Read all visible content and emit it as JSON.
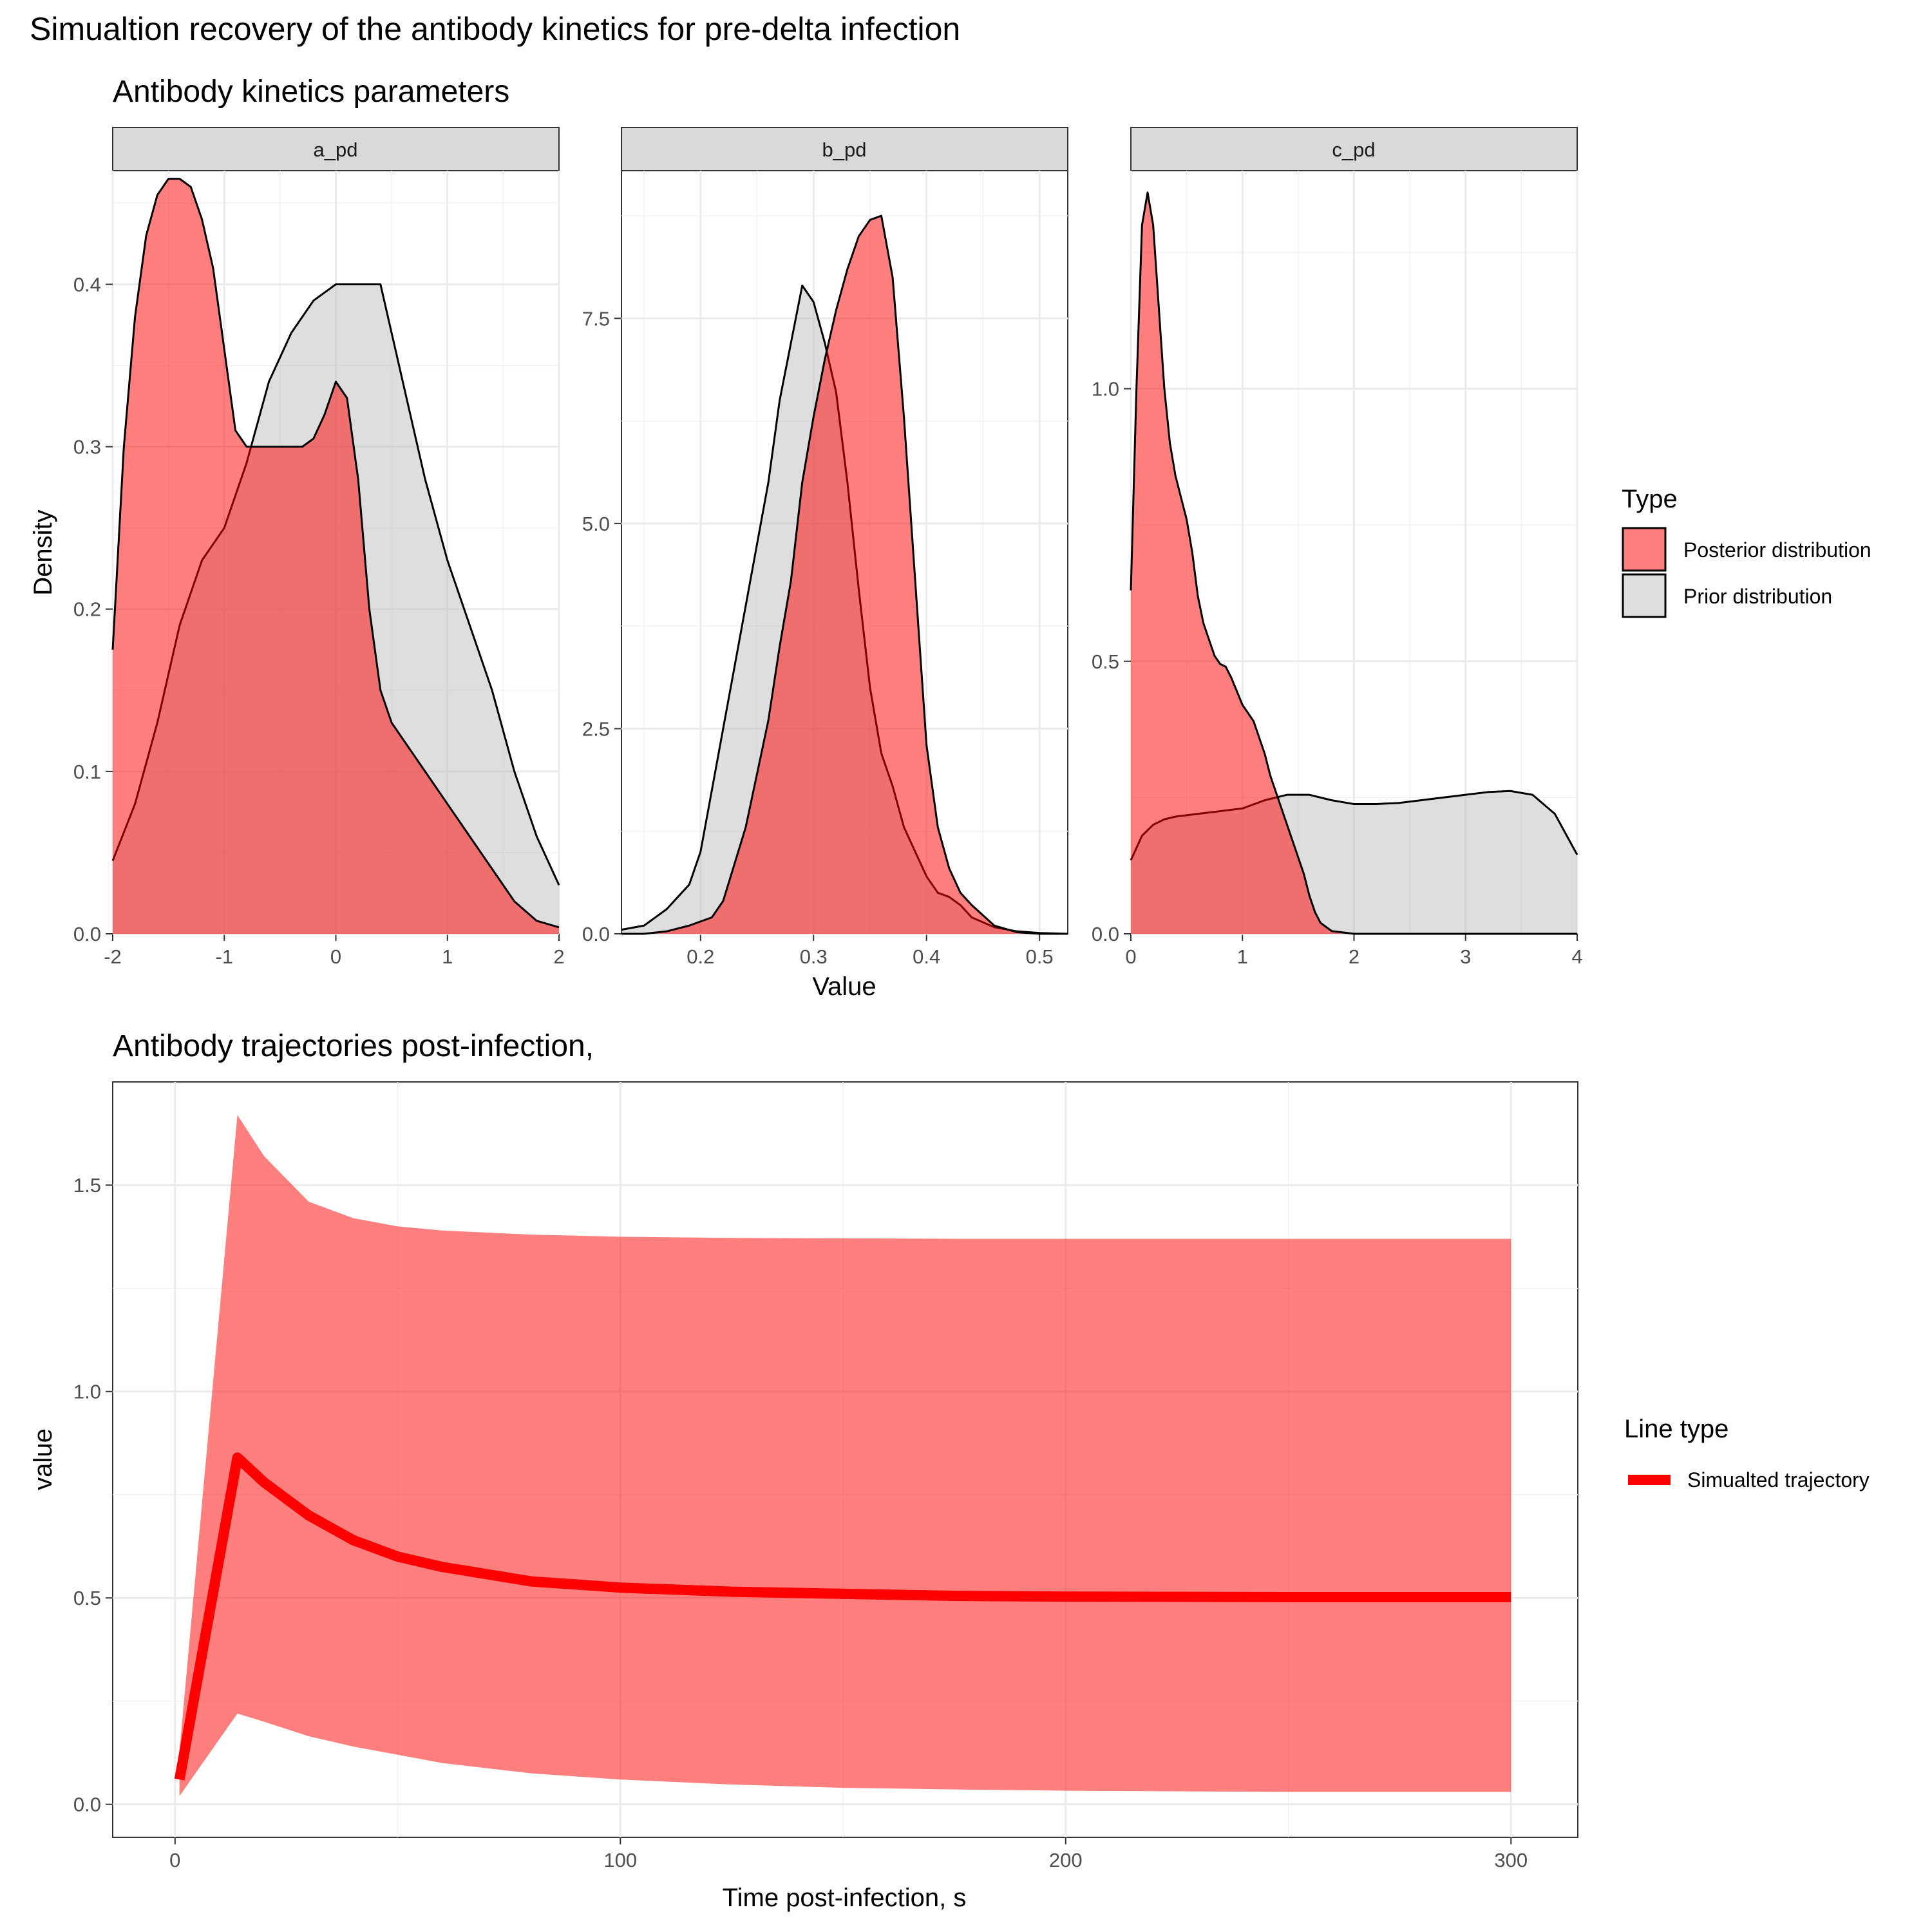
{
  "title": "Simualtion recovery of the antibody kinetics for pre-delta infection",
  "colors": {
    "posterior": "#ff0000",
    "prior": "#bdbdbd",
    "trajectory": "#ff0000",
    "strip": "#d9d9d9"
  },
  "top": {
    "subtitle": "Antibody kinetics parameters",
    "xlabel": "Value",
    "ylabel": "Density",
    "legend": {
      "title": "Type",
      "items": [
        "Posterior distribution",
        "Prior distribution"
      ]
    }
  },
  "bottom": {
    "subtitle": "Antibody trajectories post-infection,",
    "xlabel": "Time post-infection, s",
    "ylabel": "value",
    "legend": {
      "title": "Line type",
      "items": [
        "Simualted trajectory"
      ]
    }
  },
  "chart_data": [
    {
      "type": "area",
      "facet": "a_pd",
      "xlim": [
        -2,
        2
      ],
      "ylim": [
        0,
        0.47
      ],
      "xticks": [
        -2,
        -1,
        0,
        1,
        2
      ],
      "xtick_labels": [
        "-2",
        "-1",
        "0",
        "1",
        "2"
      ],
      "yticks": [
        0,
        0.1,
        0.2,
        0.3,
        0.4
      ],
      "ytick_labels": [
        "0.0",
        "0.1",
        "0.2",
        "0.3",
        "0.4"
      ],
      "series": [
        {
          "name": "Prior distribution",
          "x": [
            -2,
            -1.8,
            -1.6,
            -1.4,
            -1.2,
            -1.0,
            -0.8,
            -0.6,
            -0.4,
            -0.2,
            0.0,
            0.2,
            0.4,
            0.6,
            0.8,
            1.0,
            1.2,
            1.4,
            1.6,
            1.8,
            2.0
          ],
          "y": [
            0.045,
            0.08,
            0.13,
            0.19,
            0.23,
            0.25,
            0.29,
            0.34,
            0.37,
            0.39,
            0.4,
            0.4,
            0.4,
            0.34,
            0.28,
            0.23,
            0.19,
            0.15,
            0.1,
            0.06,
            0.03
          ]
        },
        {
          "name": "Posterior distribution",
          "x": [
            -2,
            -1.9,
            -1.8,
            -1.7,
            -1.6,
            -1.5,
            -1.4,
            -1.3,
            -1.2,
            -1.1,
            -1.0,
            -0.9,
            -0.8,
            -0.7,
            -0.6,
            -0.5,
            -0.4,
            -0.3,
            -0.2,
            -0.1,
            0.0,
            0.1,
            0.2,
            0.3,
            0.4,
            0.5,
            0.6,
            0.8,
            1.0,
            1.2,
            1.4,
            1.6,
            1.8,
            2.0
          ],
          "y": [
            0.175,
            0.3,
            0.38,
            0.43,
            0.455,
            0.465,
            0.465,
            0.46,
            0.44,
            0.41,
            0.36,
            0.31,
            0.3,
            0.3,
            0.3,
            0.3,
            0.3,
            0.3,
            0.305,
            0.32,
            0.34,
            0.33,
            0.28,
            0.2,
            0.15,
            0.13,
            0.12,
            0.1,
            0.08,
            0.06,
            0.04,
            0.02,
            0.008,
            0.004
          ]
        }
      ]
    },
    {
      "type": "area",
      "facet": "b_pd",
      "xlim": [
        0.13,
        0.525
      ],
      "ylim": [
        0,
        9.3
      ],
      "xticks": [
        0.2,
        0.3,
        0.4,
        0.5
      ],
      "xtick_labels": [
        "0.2",
        "0.3",
        "0.4",
        "0.5"
      ],
      "yticks": [
        0,
        2.5,
        5.0,
        7.5
      ],
      "ytick_labels": [
        "0.0",
        "2.5",
        "5.0",
        "7.5"
      ],
      "series": [
        {
          "name": "Prior distribution",
          "x": [
            0.13,
            0.15,
            0.17,
            0.19,
            0.2,
            0.22,
            0.24,
            0.26,
            0.27,
            0.28,
            0.29,
            0.3,
            0.31,
            0.32,
            0.33,
            0.34,
            0.35,
            0.36,
            0.37,
            0.38,
            0.39,
            0.4,
            0.41,
            0.42,
            0.43,
            0.44,
            0.46,
            0.48,
            0.5,
            0.525
          ],
          "y": [
            0.05,
            0.1,
            0.3,
            0.6,
            1.0,
            2.5,
            4.0,
            5.5,
            6.5,
            7.2,
            7.9,
            7.7,
            7.2,
            6.6,
            5.5,
            4.2,
            3.0,
            2.2,
            1.8,
            1.3,
            1.0,
            0.7,
            0.5,
            0.45,
            0.35,
            0.2,
            0.08,
            0.03,
            0.01,
            0.0
          ]
        },
        {
          "name": "Posterior distribution",
          "x": [
            0.13,
            0.15,
            0.17,
            0.19,
            0.2,
            0.21,
            0.22,
            0.24,
            0.26,
            0.27,
            0.28,
            0.29,
            0.3,
            0.31,
            0.32,
            0.33,
            0.34,
            0.35,
            0.36,
            0.37,
            0.38,
            0.39,
            0.4,
            0.41,
            0.42,
            0.43,
            0.44,
            0.46,
            0.48,
            0.5,
            0.525
          ],
          "y": [
            0.0,
            0.0,
            0.03,
            0.1,
            0.15,
            0.2,
            0.4,
            1.3,
            2.6,
            3.5,
            4.3,
            5.5,
            6.3,
            7.0,
            7.6,
            8.1,
            8.5,
            8.7,
            8.75,
            8.0,
            6.3,
            4.3,
            2.3,
            1.3,
            0.8,
            0.5,
            0.35,
            0.1,
            0.02,
            0.0,
            0.0
          ]
        }
      ]
    },
    {
      "type": "area",
      "facet": "c_pd",
      "xlim": [
        0,
        4
      ],
      "ylim": [
        0,
        1.4
      ],
      "xticks": [
        0,
        1,
        2,
        3,
        4
      ],
      "xtick_labels": [
        "0",
        "1",
        "2",
        "3",
        "4"
      ],
      "yticks": [
        0,
        0.5,
        1.0
      ],
      "ytick_labels": [
        "0.0",
        "0.5",
        "1.0"
      ],
      "series": [
        {
          "name": "Prior distribution",
          "x": [
            0,
            0.1,
            0.2,
            0.3,
            0.4,
            0.6,
            0.8,
            1.0,
            1.2,
            1.4,
            1.6,
            1.8,
            2.0,
            2.2,
            2.4,
            2.6,
            2.8,
            3.0,
            3.2,
            3.4,
            3.6,
            3.8,
            4.0
          ],
          "y": [
            0.135,
            0.18,
            0.2,
            0.21,
            0.215,
            0.22,
            0.225,
            0.23,
            0.245,
            0.255,
            0.255,
            0.245,
            0.238,
            0.238,
            0.24,
            0.245,
            0.25,
            0.255,
            0.26,
            0.262,
            0.255,
            0.22,
            0.145
          ]
        },
        {
          "name": "Posterior distribution",
          "x": [
            0,
            0.05,
            0.1,
            0.15,
            0.2,
            0.25,
            0.3,
            0.35,
            0.4,
            0.45,
            0.5,
            0.55,
            0.6,
            0.65,
            0.7,
            0.75,
            0.8,
            0.85,
            0.9,
            0.95,
            1.0,
            1.05,
            1.1,
            1.15,
            1.2,
            1.25,
            1.3,
            1.35,
            1.4,
            1.45,
            1.5,
            1.55,
            1.6,
            1.65,
            1.7,
            1.8,
            2.0,
            3.0,
            4.0
          ],
          "y": [
            0.63,
            1.0,
            1.3,
            1.36,
            1.3,
            1.15,
            1.0,
            0.9,
            0.84,
            0.8,
            0.76,
            0.7,
            0.62,
            0.57,
            0.54,
            0.51,
            0.495,
            0.49,
            0.47,
            0.445,
            0.42,
            0.405,
            0.39,
            0.36,
            0.33,
            0.29,
            0.26,
            0.23,
            0.2,
            0.17,
            0.14,
            0.11,
            0.07,
            0.04,
            0.02,
            0.005,
            0.0,
            0.0,
            0.0
          ]
        }
      ]
    },
    {
      "type": "line",
      "xlim": [
        -14,
        315
      ],
      "ylim": [
        -0.08,
        1.75
      ],
      "xticks": [
        0,
        100,
        200,
        300
      ],
      "xtick_labels": [
        "0",
        "100",
        "200",
        "300"
      ],
      "yticks": [
        0,
        0.5,
        1.0,
        1.5
      ],
      "ytick_labels": [
        "0.0",
        "0.5",
        "1.0",
        "1.5"
      ],
      "x": [
        1,
        14,
        20,
        30,
        40,
        50,
        60,
        80,
        100,
        125,
        150,
        175,
        200,
        250,
        300
      ],
      "band_upper": [
        0.13,
        1.67,
        1.57,
        1.46,
        1.42,
        1.4,
        1.39,
        1.38,
        1.375,
        1.372,
        1.371,
        1.37,
        1.37,
        1.37,
        1.37
      ],
      "band_lower": [
        0.02,
        0.22,
        0.2,
        0.165,
        0.14,
        0.12,
        0.1,
        0.075,
        0.06,
        0.048,
        0.04,
        0.036,
        0.033,
        0.03,
        0.03
      ],
      "series": [
        {
          "name": "Simualted trajectory",
          "y": [
            0.06,
            0.84,
            0.78,
            0.7,
            0.64,
            0.6,
            0.575,
            0.54,
            0.525,
            0.515,
            0.51,
            0.505,
            0.503,
            0.502,
            0.502
          ]
        }
      ]
    }
  ]
}
